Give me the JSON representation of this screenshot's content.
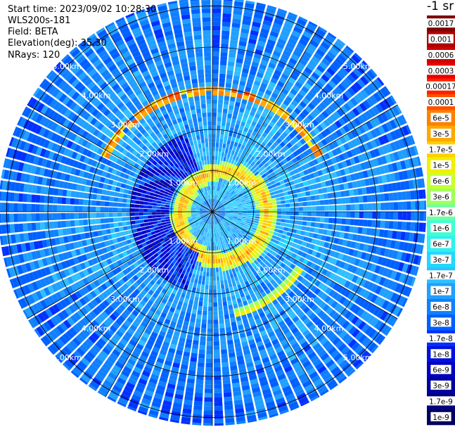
{
  "header": {
    "start_time": "Start time: 2023/09/02 10:28:30",
    "instrument": "WLS200s-181",
    "field": "Field: BETA",
    "elevation": "Elevation(deg): 35.30",
    "nrays": "NRays: 120"
  },
  "chart_data": {
    "type": "heatmap",
    "subtype": "polar-ppi",
    "field": "BETA",
    "elevation_deg": 35.3,
    "n_rays": 120,
    "range_rings_km": [
      1,
      2,
      3,
      4,
      5
    ],
    "range_labels": [
      "1.00km",
      "2.00km",
      "3.00km",
      "4.00km",
      "5.00km"
    ],
    "radial_spokes": 12,
    "max_range_km": 5.2,
    "colorbar_title": "-1 sr",
    "colorbar_labels": [
      "0.0017",
      "0.001",
      "0.0006",
      "0.0003",
      "0.00017",
      "0.0001",
      "6e-5",
      "3e-5",
      "1.7e-5",
      "1e-5",
      "6e-6",
      "3e-6",
      "1.7e-6",
      "1e-6",
      "6e-7",
      "3e-7",
      "1.7e-7",
      "1e-7",
      "6e-8",
      "3e-8",
      "1.7e-8",
      "1e-8",
      "6e-9",
      "3e-9",
      "1.7e-9",
      "1e-9"
    ],
    "colorbar_colors": [
      "#800000",
      "#b00000",
      "#d00000",
      "#e80000",
      "#ff2000",
      "#ff5000",
      "#ff8000",
      "#ffa800",
      "#ffd000",
      "#f0f000",
      "#c8ff30",
      "#a0ff60",
      "#70ffa0",
      "#40ffd0",
      "#30f0f0",
      "#20d8ff",
      "#30c0ff",
      "#20a0ff",
      "#1080ff",
      "#0060ff",
      "#0030ff",
      "#0010e0",
      "#0000c0",
      "#0000a0",
      "#000080",
      "#000060"
    ],
    "features": {
      "background_level": "1.7e-7 to 1e-8",
      "aerosol_ring_km": [
        1.0,
        1.5
      ],
      "aerosol_ring_level": "1e-5 to 1e-4",
      "cloud_arc_km": 3.0,
      "cloud_arc_level": "1.7e-5 to 1e-4"
    }
  }
}
